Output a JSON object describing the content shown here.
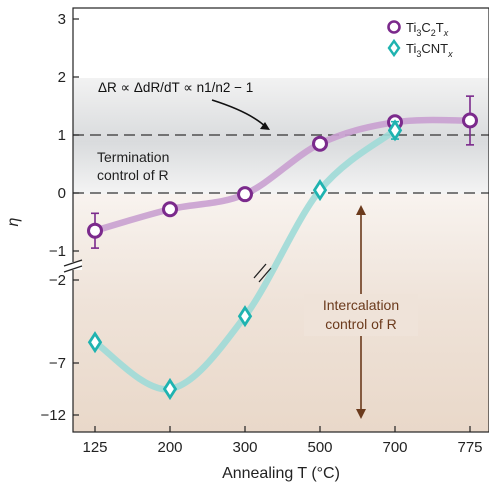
{
  "chart_data": {
    "type": "line",
    "xlabel": "Annealing T (°C)",
    "ylabel": "η",
    "categories": [
      "125",
      "200",
      "300",
      "500",
      "700",
      "775"
    ],
    "y_ticks": [
      "3",
      "2",
      "1",
      "0",
      "−1",
      "−2",
      "−7",
      "−12"
    ],
    "y_segments": [
      {
        "name": "upper",
        "range": [
          -1.5,
          3.3
        ],
        "linear": true
      },
      {
        "name": "lower",
        "range": [
          -14,
          -1.5
        ],
        "ticks": [
          -2,
          -7,
          -12
        ]
      }
    ],
    "reference_lines": [
      1,
      0
    ],
    "series": [
      {
        "name": "Ti3C2Tx",
        "color": "#7b2a8c",
        "curve_color": "#c9a0d0",
        "marker": "circle",
        "points": [
          {
            "x": "125",
            "y": -0.65,
            "err": 0.3
          },
          {
            "x": "200",
            "y": -0.28
          },
          {
            "x": "300",
            "y": -0.02
          },
          {
            "x": "500",
            "y": 0.85
          },
          {
            "x": "700",
            "y": 1.22
          },
          {
            "x": "775",
            "y": 1.25,
            "err": 0.42
          }
        ]
      },
      {
        "name": "Ti3CNTx",
        "color": "#1fb3b0",
        "curve_color": "#9fdad7",
        "marker": "diamond",
        "points": [
          {
            "x": "125",
            "y": -5
          },
          {
            "x": "200",
            "y": -9.5
          },
          {
            "x": "300",
            "y": -2.5
          },
          {
            "x": "500",
            "y": 0.05
          },
          {
            "x": "700",
            "y": 1.08,
            "err": 0.15
          }
        ]
      }
    ],
    "legend": {
      "position": "top-right",
      "entries": [
        {
          "base": "Ti",
          "sub1": "3",
          "mid": "C",
          "sub2": "2",
          "tail": "T",
          "sub3": "x"
        },
        {
          "base": "Ti",
          "sub1": "3",
          "mid": "CNT",
          "sub2": "",
          "tail": "",
          "sub3": "x"
        }
      ]
    },
    "annotations": {
      "equation": "ΔR ∝ ΔdR/dT ∝ n1/n2 − 1",
      "termination": [
        "Termination",
        "control of R"
      ],
      "intercalation": [
        "Intercalation",
        "control of R"
      ]
    }
  }
}
